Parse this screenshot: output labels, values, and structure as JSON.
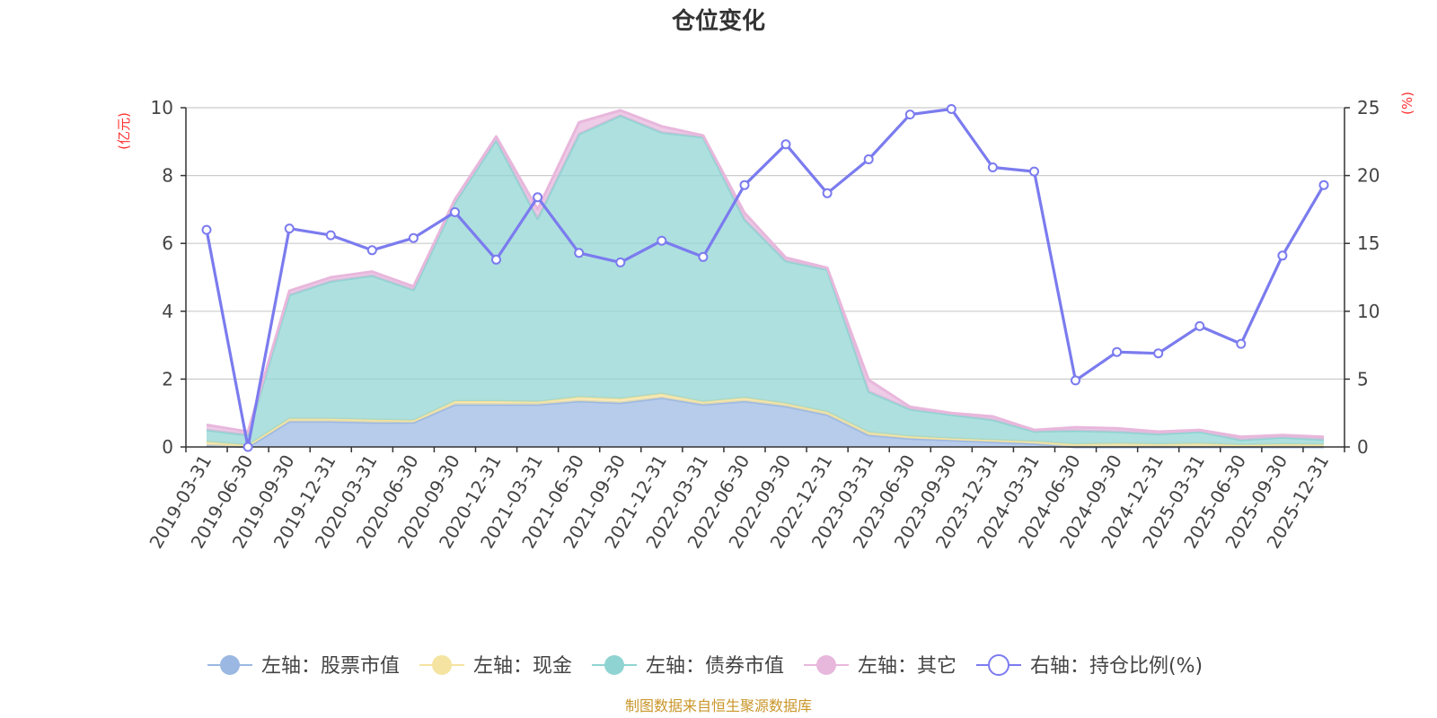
{
  "chart_data": {
    "type": "area",
    "title": "仓位变化",
    "left_axis_unit": "(亿元)",
    "right_axis_unit": "(%)",
    "left_ylim": [
      0,
      10
    ],
    "left_ticks": [
      "0",
      "2",
      "4",
      "6",
      "8",
      "10"
    ],
    "right_ylim": [
      0,
      25
    ],
    "right_ticks": [
      "0",
      "5",
      "10",
      "15",
      "20",
      "25"
    ],
    "categories": [
      "2019-03-31",
      "2019-06-30",
      "2019-09-30",
      "2019-12-31",
      "2020-03-31",
      "2020-06-30",
      "2020-09-30",
      "2020-12-31",
      "2021-03-31",
      "2021-06-30",
      "2021-09-30",
      "2021-12-31",
      "2022-03-31",
      "2022-06-30",
      "2022-09-30",
      "2022-12-31",
      "2023-03-31",
      "2023-06-30",
      "2023-09-30",
      "2023-12-31",
      "2024-03-31",
      "2024-06-30",
      "2024-09-30",
      "2024-12-31",
      "2025-03-31",
      "2025-06-30",
      "2025-09-30",
      "2025-12-31"
    ],
    "stacked_series": [
      {
        "name": "左轴：股票市值",
        "color": "#9bb8e3",
        "values": [
          0.05,
          0.0,
          0.75,
          0.75,
          0.72,
          0.72,
          1.25,
          1.25,
          1.25,
          1.35,
          1.3,
          1.45,
          1.25,
          1.35,
          1.2,
          0.95,
          0.35,
          0.25,
          0.2,
          0.15,
          0.1,
          0.0,
          0.0,
          0.0,
          0.0,
          0.0,
          0.0,
          0.0
        ]
      },
      {
        "name": "左轴：现金",
        "color": "#f5e3a1",
        "values": [
          0.1,
          0.05,
          0.08,
          0.08,
          0.08,
          0.06,
          0.1,
          0.1,
          0.08,
          0.12,
          0.12,
          0.12,
          0.08,
          0.1,
          0.08,
          0.08,
          0.08,
          0.06,
          0.05,
          0.05,
          0.06,
          0.08,
          0.1,
          0.08,
          0.1,
          0.06,
          0.08,
          0.07
        ]
      },
      {
        "name": "左轴：债券市值",
        "color": "#8fd4d2",
        "values": [
          0.35,
          0.3,
          3.65,
          4.05,
          4.25,
          3.85,
          5.85,
          7.7,
          5.4,
          7.75,
          8.35,
          7.7,
          7.8,
          5.25,
          4.2,
          4.2,
          1.2,
          0.8,
          0.7,
          0.6,
          0.3,
          0.4,
          0.35,
          0.3,
          0.35,
          0.15,
          0.2,
          0.15
        ]
      },
      {
        "name": "左轴：其它",
        "color": "#e8b7dc",
        "values": [
          0.15,
          0.1,
          0.12,
          0.12,
          0.12,
          0.1,
          0.1,
          0.1,
          0.27,
          0.35,
          0.15,
          0.18,
          0.05,
          0.2,
          0.1,
          0.05,
          0.35,
          0.07,
          0.05,
          0.1,
          0.04,
          0.1,
          0.1,
          0.07,
          0.05,
          0.09,
          0.07,
          0.08
        ]
      }
    ],
    "line_series": {
      "name": "右轴：持仓比例(%)",
      "color": "#7b7bef",
      "values": [
        16.0,
        0.0,
        16.1,
        15.6,
        14.5,
        15.4,
        17.3,
        13.8,
        18.4,
        14.3,
        13.6,
        15.2,
        14.0,
        19.3,
        22.3,
        18.7,
        21.2,
        24.5,
        24.9,
        20.6,
        20.3,
        4.9,
        7.0,
        6.9,
        8.9,
        7.6,
        14.1,
        19.3
      ]
    }
  },
  "legend_items": [
    {
      "label": "左轴：股票市值",
      "color": "#9bb8e3",
      "kind": "filled"
    },
    {
      "label": "左轴：现金",
      "color": "#f5e3a1",
      "kind": "filled"
    },
    {
      "label": "左轴：债券市值",
      "color": "#8fd4d2",
      "kind": "filled"
    },
    {
      "label": "左轴：其它",
      "color": "#e8b7dc",
      "kind": "filled"
    },
    {
      "label": "右轴：持仓比例(%)",
      "color": "#7b7bef",
      "kind": "hollow"
    }
  ],
  "source": "制图数据来自恒生聚源数据库",
  "colors": {
    "unit_text": "#ff3030",
    "source_text": "#c9962a",
    "grid": "#cccccc",
    "axis": "#333333"
  }
}
